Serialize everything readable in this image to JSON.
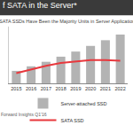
{
  "chart_data": {
    "type": "bar",
    "title": "f SATA in the Server*",
    "subtitle": "SATA SSDs Have Been the Majority Units in Server Applications",
    "categories": [
      "2015",
      "2016",
      "2017",
      "2018",
      "2019",
      "2020",
      "2021",
      "2022"
    ],
    "series": [
      {
        "name": "Server-attached SSD",
        "type": "bar",
        "color": "#b3b3b3",
        "values": [
          22,
          30,
          38,
          47,
          56,
          66,
          76,
          86
        ]
      },
      {
        "name": "SATA SSD",
        "type": "line",
        "color": "#e8383d",
        "values": [
          18,
          25,
          31,
          36,
          39,
          41,
          41,
          40
        ]
      }
    ],
    "ylim": [
      0,
      100
    ],
    "tick_labels": "x",
    "grid": false,
    "legend": "bottom",
    "annotations": [
      "Forward Insights Q1'16"
    ]
  }
}
